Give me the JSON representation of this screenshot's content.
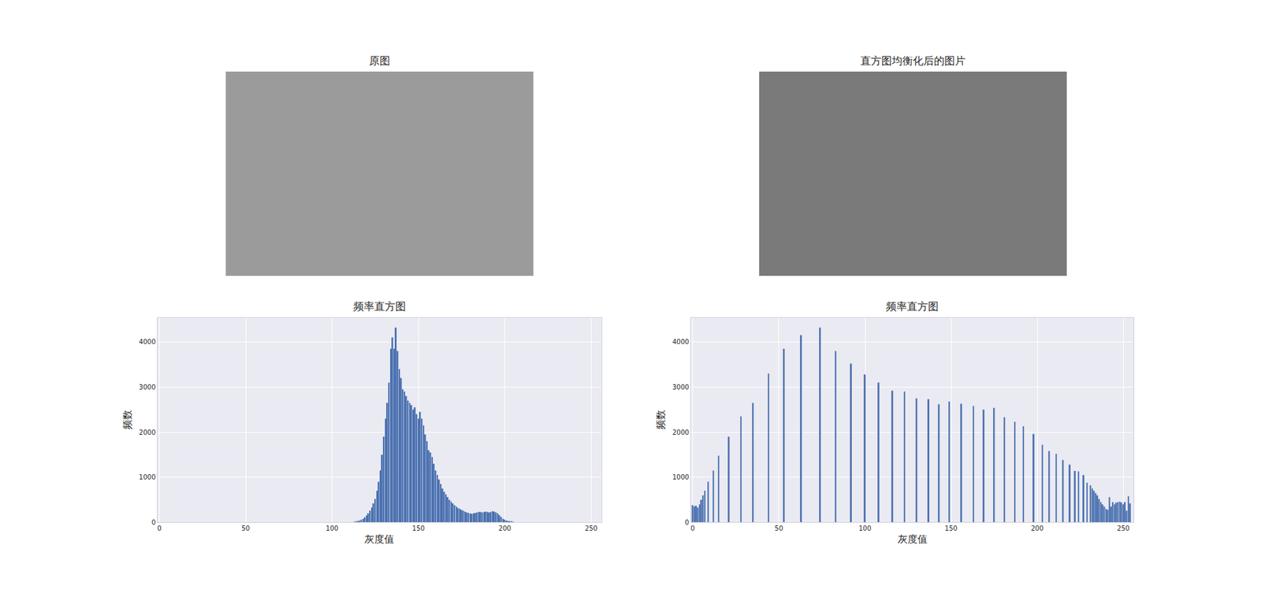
{
  "chart_data": [
    {
      "type": "image",
      "title": "原图",
      "color": "#9b9b9b"
    },
    {
      "type": "image",
      "title": "直方图均衡化后的图片",
      "color": "#7a7a7a"
    },
    {
      "type": "bar",
      "title": "频率直方图",
      "x_label": "灰度值",
      "y_label": "频数",
      "x": [
        113,
        114,
        115,
        116,
        117,
        118,
        119,
        120,
        121,
        122,
        123,
        124,
        125,
        126,
        127,
        128,
        129,
        130,
        131,
        132,
        133,
        134,
        135,
        136,
        137,
        138,
        139,
        140,
        141,
        142,
        143,
        144,
        145,
        146,
        147,
        148,
        149,
        150,
        151,
        152,
        153,
        154,
        155,
        156,
        157,
        158,
        159,
        160,
        161,
        162,
        163,
        164,
        165,
        166,
        167,
        168,
        169,
        170,
        171,
        172,
        173,
        174,
        175,
        176,
        177,
        178,
        179,
        180,
        181,
        182,
        183,
        184,
        185,
        186,
        187,
        188,
        189,
        190,
        191,
        192,
        193,
        194,
        195,
        196,
        197,
        198,
        199,
        200,
        201,
        202,
        203,
        204,
        205
      ],
      "values": [
        10,
        20,
        30,
        40,
        60,
        80,
        110,
        150,
        200,
        260,
        330,
        420,
        520,
        700,
        900,
        1150,
        1500,
        1900,
        2300,
        2650,
        3100,
        3850,
        4100,
        3850,
        4320,
        3800,
        3400,
        3200,
        2950,
        2900,
        2800,
        2700,
        2650,
        2600,
        2500,
        2550,
        2400,
        2300,
        2450,
        2300,
        2150,
        1950,
        1800,
        1600,
        1550,
        1450,
        1300,
        1150,
        1050,
        950,
        850,
        750,
        680,
        620,
        560,
        500,
        460,
        420,
        380,
        350,
        320,
        300,
        280,
        260,
        240,
        220,
        210,
        200,
        190,
        200,
        210,
        220,
        230,
        230,
        220,
        230,
        240,
        230,
        220,
        230,
        250,
        240,
        220,
        200,
        160,
        120,
        80,
        60,
        40,
        30,
        20,
        15,
        10
      ],
      "color": "#4c72b0",
      "xlim": [
        -1,
        256
      ],
      "xticks": [
        0,
        50,
        100,
        150,
        200,
        250
      ],
      "ylim": [
        0,
        4540
      ],
      "yticks": [
        0,
        1000,
        2000,
        3000,
        4000
      ],
      "grid": true
    },
    {
      "type": "bar",
      "title": "频率直方图",
      "x_label": "灰度值",
      "y_label": "频数",
      "x": [
        0,
        1,
        2,
        3,
        4,
        5,
        6,
        7,
        9,
        12,
        15,
        21,
        28,
        35,
        44,
        53,
        63,
        74,
        83,
        92,
        100,
        108,
        116,
        123,
        130,
        137,
        143,
        149,
        156,
        163,
        169,
        175,
        181,
        187,
        192,
        198,
        203,
        207,
        211,
        215,
        219,
        222,
        224,
        227,
        229,
        231,
        232,
        233,
        234,
        235,
        236,
        237,
        238,
        239,
        240,
        241,
        242,
        243,
        244,
        245,
        246,
        247,
        248,
        249,
        250,
        251,
        252,
        253,
        254
      ],
      "values": [
        380,
        350,
        370,
        330,
        400,
        500,
        600,
        700,
        900,
        1150,
        1480,
        1900,
        2350,
        2650,
        3300,
        3850,
        4150,
        4320,
        3800,
        3520,
        3280,
        3100,
        2920,
        2900,
        2750,
        2730,
        2620,
        2680,
        2630,
        2580,
        2500,
        2540,
        2330,
        2230,
        2130,
        1960,
        1720,
        1580,
        1520,
        1380,
        1280,
        1140,
        1130,
        1050,
        880,
        820,
        750,
        700,
        650,
        600,
        520,
        450,
        400,
        350,
        300,
        280,
        560,
        350,
        450,
        400,
        440,
        450,
        460,
        440,
        400,
        450,
        260,
        580,
        420
      ],
      "color": "#4c72b0",
      "xlim": [
        -1,
        256
      ],
      "xticks": [
        0,
        50,
        100,
        150,
        200,
        250
      ],
      "ylim": [
        0,
        4540
      ],
      "yticks": [
        0,
        1000,
        2000,
        3000,
        4000
      ],
      "grid": true
    }
  ]
}
